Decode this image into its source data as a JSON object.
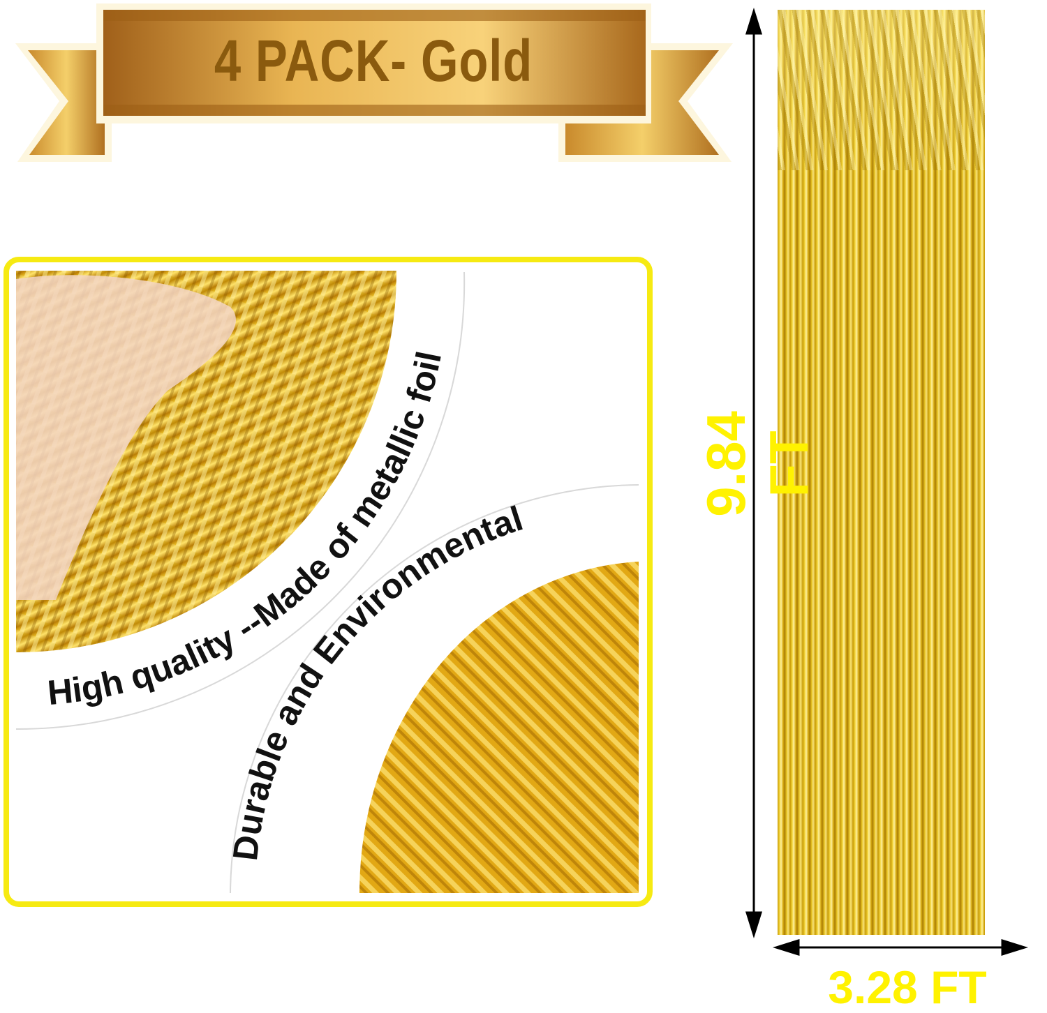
{
  "banner": {
    "title": "4 PACK- Gold"
  },
  "features": {
    "quality": "High quality --Made of metallic foil",
    "durable": "Durable and Environmental"
  },
  "dimensions": {
    "height": "9.84 FT",
    "width": "3.28 FT"
  },
  "colors": {
    "accent_yellow": "#fff200",
    "frame": "#f6ea12",
    "gold": "#e6c020",
    "banner_text": "#8a5a0e"
  }
}
